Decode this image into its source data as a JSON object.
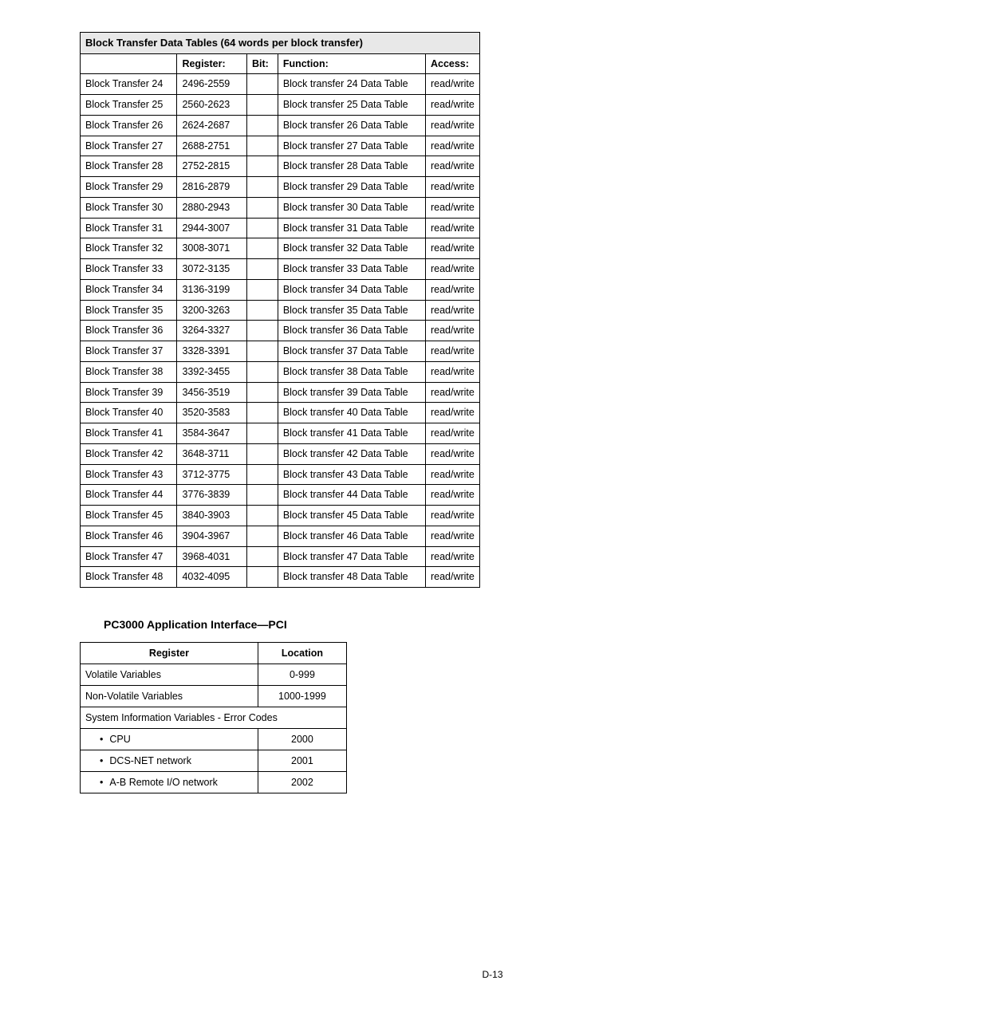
{
  "table1": {
    "title": "Block Transfer Data Tables (64 words per block transfer)",
    "headers": {
      "c1": "",
      "c2": "Register:",
      "c3": "Bit:",
      "c4": "Function:",
      "c5": "Access:"
    },
    "rows": [
      {
        "name": "Block Transfer 24",
        "reg": "2496-2559",
        "bit": "",
        "func": "Block transfer 24 Data Table",
        "acc": "read/write"
      },
      {
        "name": "Block Transfer 25",
        "reg": "2560-2623",
        "bit": "",
        "func": "Block transfer 25 Data Table",
        "acc": "read/write"
      },
      {
        "name": "Block Transfer 26",
        "reg": "2624-2687",
        "bit": "",
        "func": "Block transfer 26 Data Table",
        "acc": "read/write"
      },
      {
        "name": "Block Transfer 27",
        "reg": "2688-2751",
        "bit": "",
        "func": "Block transfer 27 Data Table",
        "acc": "read/write"
      },
      {
        "name": "Block Transfer 28",
        "reg": "2752-2815",
        "bit": "",
        "func": "Block transfer 28 Data Table",
        "acc": "read/write"
      },
      {
        "name": "Block Transfer 29",
        "reg": "2816-2879",
        "bit": "",
        "func": "Block transfer 29 Data Table",
        "acc": "read/write"
      },
      {
        "name": "Block Transfer 30",
        "reg": "2880-2943",
        "bit": "",
        "func": "Block transfer 30 Data Table",
        "acc": "read/write"
      },
      {
        "name": "Block Transfer 31",
        "reg": "2944-3007",
        "bit": "",
        "func": "Block transfer 31 Data Table",
        "acc": "read/write"
      },
      {
        "name": "Block Transfer 32",
        "reg": "3008-3071",
        "bit": "",
        "func": "Block transfer 32 Data Table",
        "acc": "read/write"
      },
      {
        "name": "Block Transfer 33",
        "reg": "3072-3135",
        "bit": "",
        "func": "Block transfer 33 Data Table",
        "acc": "read/write"
      },
      {
        "name": "Block Transfer 34",
        "reg": "3136-3199",
        "bit": "",
        "func": "Block transfer 34 Data Table",
        "acc": "read/write"
      },
      {
        "name": "Block Transfer 35",
        "reg": "3200-3263",
        "bit": "",
        "func": "Block transfer 35 Data Table",
        "acc": "read/write"
      },
      {
        "name": "Block Transfer 36",
        "reg": "3264-3327",
        "bit": "",
        "func": "Block transfer 36 Data Table",
        "acc": "read/write"
      },
      {
        "name": "Block Transfer 37",
        "reg": "3328-3391",
        "bit": "",
        "func": "Block transfer 37 Data Table",
        "acc": "read/write"
      },
      {
        "name": "Block Transfer 38",
        "reg": "3392-3455",
        "bit": "",
        "func": "Block transfer 38 Data Table",
        "acc": "read/write"
      },
      {
        "name": "Block Transfer 39",
        "reg": "3456-3519",
        "bit": "",
        "func": "Block transfer 39 Data Table",
        "acc": "read/write"
      },
      {
        "name": "Block Transfer 40",
        "reg": "3520-3583",
        "bit": "",
        "func": "Block transfer 40 Data Table",
        "acc": "read/write"
      },
      {
        "name": "Block Transfer 41",
        "reg": "3584-3647",
        "bit": "",
        "func": "Block transfer 41 Data Table",
        "acc": "read/write"
      },
      {
        "name": "Block Transfer 42",
        "reg": "3648-3711",
        "bit": "",
        "func": "Block transfer 42 Data Table",
        "acc": "read/write"
      },
      {
        "name": "Block Transfer 43",
        "reg": "3712-3775",
        "bit": "",
        "func": "Block transfer 43 Data Table",
        "acc": "read/write"
      },
      {
        "name": "Block Transfer 44",
        "reg": "3776-3839",
        "bit": "",
        "func": "Block transfer 44 Data Table",
        "acc": "read/write"
      },
      {
        "name": "Block Transfer 45",
        "reg": "3840-3903",
        "bit": "",
        "func": "Block transfer 45 Data Table",
        "acc": "read/write"
      },
      {
        "name": "Block Transfer 46",
        "reg": "3904-3967",
        "bit": "",
        "func": "Block transfer 46 Data Table",
        "acc": "read/write"
      },
      {
        "name": "Block Transfer 47",
        "reg": "3968-4031",
        "bit": "",
        "func": "Block transfer 47 Data Table",
        "acc": "read/write"
      },
      {
        "name": "Block Transfer 48",
        "reg": "4032-4095",
        "bit": "",
        "func": "Block transfer 48 Data Table",
        "acc": "read/write"
      }
    ]
  },
  "section_title": "PC3000 Application Interface—PCI",
  "table2": {
    "headers": {
      "c1": "Register",
      "c2": "Location"
    },
    "rows": [
      {
        "type": "pair",
        "c1": "Volatile Variables",
        "c2": "0-999"
      },
      {
        "type": "pair",
        "c1": "Non-Volatile Variables",
        "c2": "1000-1999"
      },
      {
        "type": "span",
        "c1": "System Information Variables - Error Codes"
      },
      {
        "type": "bullet",
        "c1": "CPU",
        "c2": "2000"
      },
      {
        "type": "bullet",
        "c1": "DCS-NET network",
        "c2": "2001"
      },
      {
        "type": "bullet",
        "c1": "A-B Remote I/O network",
        "c2": "2002"
      }
    ]
  },
  "page_number": "D-13"
}
